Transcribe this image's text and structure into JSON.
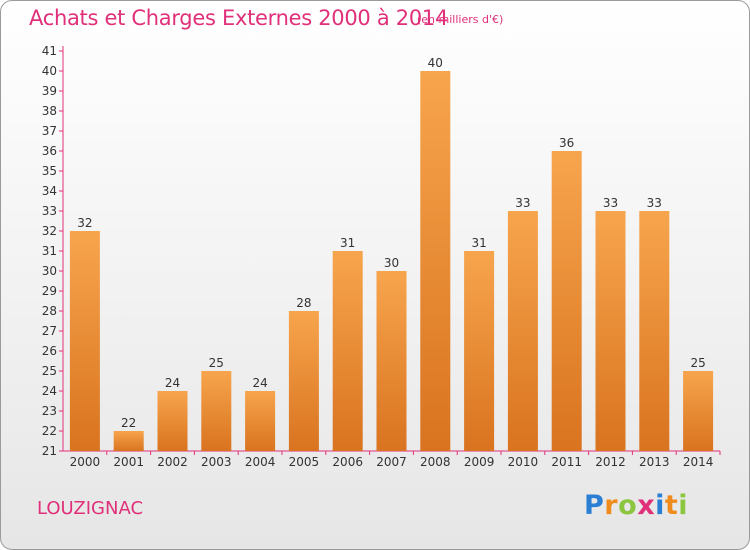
{
  "header": {
    "title": "Achats et Charges Externes 2000 à 2014",
    "unit_note": "(en milliers d'€)"
  },
  "footer": {
    "commune": "LOUZIGNAC",
    "logo_text": "Proxiti"
  },
  "colors": {
    "bar_top": "#f7a54d",
    "bar_bottom": "#d9731f",
    "title": "#e0307a",
    "axis": "#e0307a"
  },
  "chart_data": {
    "type": "bar",
    "categories": [
      "2000",
      "2001",
      "2002",
      "2003",
      "2004",
      "2005",
      "2006",
      "2007",
      "2008",
      "2009",
      "2010",
      "2011",
      "2012",
      "2013",
      "2014"
    ],
    "values": [
      32,
      22,
      24,
      25,
      24,
      28,
      31,
      30,
      40,
      31,
      33,
      36,
      33,
      33,
      25
    ],
    "ylim": [
      21,
      41
    ],
    "yticks": [
      21,
      22,
      23,
      24,
      25,
      26,
      27,
      28,
      29,
      30,
      31,
      32,
      33,
      34,
      35,
      36,
      37,
      38,
      39,
      40,
      41
    ],
    "grid": false,
    "legend": "none"
  }
}
